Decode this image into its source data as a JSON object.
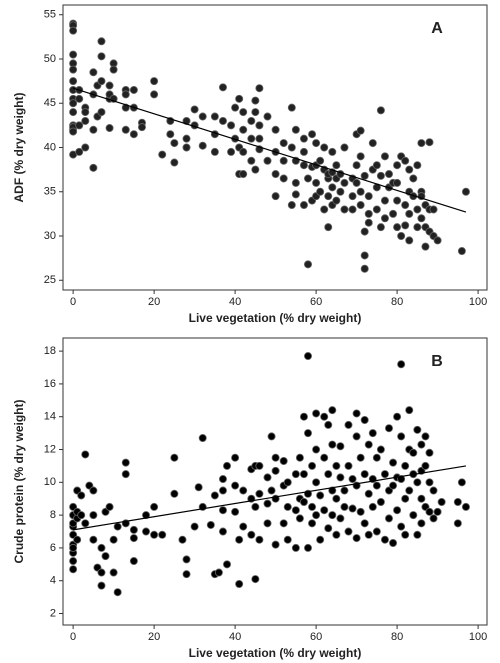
{
  "chart_data": [
    {
      "type": "scatter",
      "annotation": "A",
      "xlabel": "Live vegetation (% dry weight)",
      "ylabel": "ADF (% dry weight)",
      "color": "#222222",
      "trendline_color": "#000000",
      "xlim": [
        -2.5,
        102.2
      ],
      "ylim": [
        23.9,
        56.1
      ],
      "xticks": [
        0,
        20,
        40,
        60,
        80,
        100
      ],
      "yticks": [
        25,
        30,
        35,
        40,
        45,
        50,
        55
      ],
      "trendline": {
        "x": [
          0,
          97
        ],
        "y": [
          46.7,
          32.7
        ]
      },
      "x": [
        0,
        0,
        0,
        0,
        0,
        0,
        0,
        0,
        0,
        0,
        0,
        0,
        0,
        0,
        0,
        0,
        1.5,
        1.5,
        1.5,
        1.5,
        3,
        3,
        3,
        3,
        5,
        5,
        5,
        5,
        6,
        6,
        7,
        7,
        7,
        7,
        9,
        9,
        9,
        9,
        10,
        10,
        10,
        13,
        13,
        13,
        13,
        15,
        15,
        15,
        17,
        17,
        20,
        20,
        22,
        24,
        24,
        25,
        25,
        28,
        28,
        28,
        30,
        30,
        32,
        32,
        35,
        35,
        35,
        37,
        37,
        39,
        39,
        40,
        40,
        41,
        41,
        41,
        42,
        42,
        42,
        42,
        44,
        44,
        44,
        45,
        45,
        45,
        46,
        46,
        46,
        46,
        48,
        48,
        50,
        50,
        50,
        50,
        52,
        52,
        52,
        54,
        54,
        54,
        55,
        55,
        55,
        55,
        57,
        57,
        57,
        57,
        58,
        58,
        59,
        59,
        59,
        60,
        60,
        60,
        60,
        61,
        61,
        62,
        62,
        62,
        63,
        63,
        63,
        63,
        64,
        64,
        64,
        64,
        65,
        65,
        65,
        66,
        66,
        67,
        67,
        67,
        69,
        69,
        69,
        70,
        70,
        70,
        71,
        71,
        71,
        71,
        72,
        72,
        72,
        72,
        73,
        73,
        73,
        74,
        74,
        75,
        75,
        75,
        76,
        76,
        76,
        77,
        77,
        77,
        78,
        78,
        79,
        79,
        80,
        80,
        80,
        80,
        81,
        81,
        82,
        82,
        82,
        83,
        83,
        83,
        83,
        84,
        84,
        85,
        85,
        85,
        86,
        86,
        86,
        86,
        87,
        87,
        87,
        88,
        88,
        88,
        89,
        89,
        90,
        96,
        97
      ],
      "y": [
        54,
        53.8,
        53.2,
        50.5,
        49.5,
        48.8,
        46.5,
        45.5,
        45,
        44,
        42.5,
        42,
        42.3,
        41.8,
        39.2,
        47.5,
        46.5,
        45.5,
        42.5,
        39.5,
        44.5,
        44,
        43,
        40,
        48.5,
        42,
        37.7,
        46,
        47,
        43.5,
        52,
        50.3,
        47.5,
        44,
        47,
        45.5,
        42.2,
        46,
        49.5,
        48.8,
        45.5,
        46.5,
        46,
        44.5,
        42,
        46.5,
        44.5,
        41.5,
        42.8,
        42.3,
        47.5,
        46,
        39.2,
        43,
        41.5,
        38.3,
        40.5,
        43,
        41,
        40,
        44.3,
        42.5,
        40.2,
        43.5,
        41.5,
        39.5,
        43.5,
        46.8,
        43,
        42.5,
        39.5,
        44.5,
        41,
        45.5,
        40,
        37,
        44,
        42,
        39.5,
        37,
        38.5,
        41,
        43,
        45.3,
        44,
        37.5,
        46.7,
        42.5,
        41,
        39.8,
        43.5,
        38.5,
        42,
        39.5,
        37,
        34.5,
        40.5,
        38.5,
        36.5,
        44.5,
        40,
        33.5,
        42,
        38.5,
        36,
        34.7,
        41,
        39.5,
        38,
        33.5,
        26.8,
        36.5,
        41.5,
        37.8,
        34,
        40.5,
        38,
        36,
        34.5,
        38.5,
        35,
        40,
        37.5,
        33,
        36.5,
        34.5,
        31,
        37,
        39.5,
        37.2,
        35.5,
        33.5,
        38,
        36.5,
        34,
        37,
        35,
        40,
        36,
        33,
        36.5,
        34.5,
        33,
        41.5,
        38,
        36,
        41.9,
        39,
        35,
        33.5,
        27.8,
        26.3,
        30.5,
        36.8,
        34.5,
        32.5,
        31.5,
        40.5,
        37.5,
        38,
        35.5,
        33,
        44.2,
        36.8,
        31,
        39,
        34,
        32,
        37,
        35.5,
        36,
        32.5,
        38,
        36,
        34,
        31,
        39,
        30,
        38.5,
        33.5,
        31.2,
        37.5,
        35,
        32.5,
        29.5,
        36.5,
        34.5,
        38,
        33,
        31,
        40.5,
        35,
        34.5,
        32,
        33.5,
        31,
        28.8,
        40.6,
        33,
        30.5,
        33,
        30,
        29.5,
        28.3,
        35
      ]
    },
    {
      "type": "scatter",
      "annotation": "B",
      "xlabel": "Live vegetation (% dry weight)",
      "ylabel": "Crude protein (% dry weight)",
      "color": "#000000",
      "trendline_color": "#000000",
      "xlim": [
        -2.5,
        102.2
      ],
      "ylim": [
        1.3,
        18.8
      ],
      "xticks": [
        0,
        20,
        40,
        60,
        80,
        100
      ],
      "yticks": [
        2,
        4,
        6,
        8,
        10,
        12,
        14,
        16,
        18
      ],
      "trendline": {
        "x": [
          0,
          97
        ],
        "y": [
          7.1,
          11.0
        ]
      },
      "x": [
        0,
        0,
        0,
        0,
        0,
        0,
        0,
        0,
        0,
        0,
        1,
        1,
        1,
        1,
        2,
        2,
        3,
        3,
        4,
        5,
        5,
        5,
        6,
        7,
        7,
        7,
        8,
        8,
        9,
        10,
        10,
        11,
        11,
        13,
        13,
        13,
        15,
        15,
        15,
        18,
        18,
        20,
        20,
        22,
        25,
        25,
        27,
        28,
        28,
        30,
        31,
        32,
        32,
        34,
        35,
        35,
        36,
        37,
        37,
        37,
        37,
        38,
        38,
        40,
        40,
        40,
        41,
        41,
        42,
        42,
        44,
        44,
        44,
        45,
        45,
        45,
        46,
        46,
        46,
        48,
        48,
        48,
        49,
        49,
        50,
        50,
        50,
        50,
        52,
        52,
        52,
        53,
        53,
        53,
        55,
        55,
        55,
        56,
        56,
        56,
        57,
        57,
        57,
        58,
        58,
        58,
        58,
        59,
        59,
        59,
        60,
        60,
        60,
        60,
        61,
        61,
        62,
        62,
        62,
        63,
        63,
        63,
        64,
        64,
        64,
        64,
        65,
        65,
        65,
        66,
        66,
        66,
        67,
        67,
        68,
        68,
        68,
        69,
        69,
        70,
        70,
        70,
        70,
        71,
        71,
        72,
        72,
        72,
        73,
        73,
        73,
        74,
        74,
        74,
        75,
        75,
        75,
        76,
        76,
        77,
        77,
        78,
        78,
        78,
        79,
        79,
        79,
        80,
        80,
        80,
        81,
        81,
        81,
        81,
        82,
        82,
        82,
        83,
        83,
        83,
        84,
        84,
        84,
        85,
        85,
        85,
        86,
        86,
        86,
        86,
        87,
        87,
        87,
        88,
        88,
        88,
        89,
        89,
        90,
        91,
        95,
        95,
        96,
        97
      ],
      "y": [
        5.2,
        4.7,
        5.7,
        6.2,
        6,
        6.8,
        7.3,
        7.5,
        8,
        8.5,
        7.8,
        9.5,
        6.5,
        8.2,
        9.2,
        8,
        11.7,
        7.5,
        9.8,
        9.5,
        8,
        6.5,
        4.8,
        4.5,
        3.7,
        6,
        8.2,
        5.5,
        8.5,
        6.5,
        4.5,
        3.3,
        7.3,
        11.2,
        10.5,
        7.5,
        7.1,
        6.6,
        5.2,
        8,
        7,
        8.5,
        6.8,
        6.8,
        11.5,
        9.3,
        6.5,
        5.3,
        4.4,
        7.3,
        9.7,
        12.7,
        8.5,
        7.4,
        4.4,
        9.2,
        4.5,
        9.5,
        10.2,
        8.3,
        7,
        11,
        5,
        11.5,
        9.8,
        8.2,
        3.8,
        6.5,
        9.5,
        7.3,
        10.8,
        9,
        6.8,
        11,
        8.5,
        4.1,
        11,
        9.3,
        6.5,
        10.3,
        8.7,
        7.5,
        12.8,
        9.5,
        11.5,
        10.7,
        9,
        6.2,
        11.3,
        9.8,
        7.5,
        10,
        8.5,
        6.5,
        10.5,
        8.3,
        6,
        11.5,
        9,
        7.8,
        14,
        10.5,
        8.8,
        17.7,
        13,
        9.3,
        6,
        11,
        8.5,
        7.5,
        14.2,
        12,
        10,
        8,
        9.2,
        6.5,
        14,
        11.5,
        8.3,
        13.5,
        10.5,
        7.2,
        14.4,
        12.3,
        9.5,
        8,
        11,
        9,
        6.8,
        12.2,
        10.3,
        7.8,
        9.5,
        8.5,
        13.5,
        11,
        7,
        10.2,
        8.4,
        14.2,
        12.8,
        9.8,
        6.6,
        11.5,
        8.2,
        13.8,
        10.5,
        7.5,
        12.3,
        9.3,
        6.8,
        13,
        10.2,
        8.5,
        11.5,
        9.8,
        7,
        12,
        8.8,
        10.5,
        6.5,
        13.3,
        9.5,
        7.8,
        11.2,
        9.8,
        6.3,
        14,
        10.3,
        8.3,
        17.2,
        12.8,
        10.2,
        7.3,
        11,
        9,
        6.8,
        14.4,
        12,
        9.5,
        11.8,
        10.5,
        8,
        13.2,
        10,
        6.8,
        12.3,
        10.7,
        9,
        7.5,
        12.8,
        11,
        8.5,
        11.8,
        10,
        8.2,
        9.5,
        7.8,
        8.2,
        8.8,
        8.8,
        7.5,
        10,
        8.5
      ]
    }
  ]
}
